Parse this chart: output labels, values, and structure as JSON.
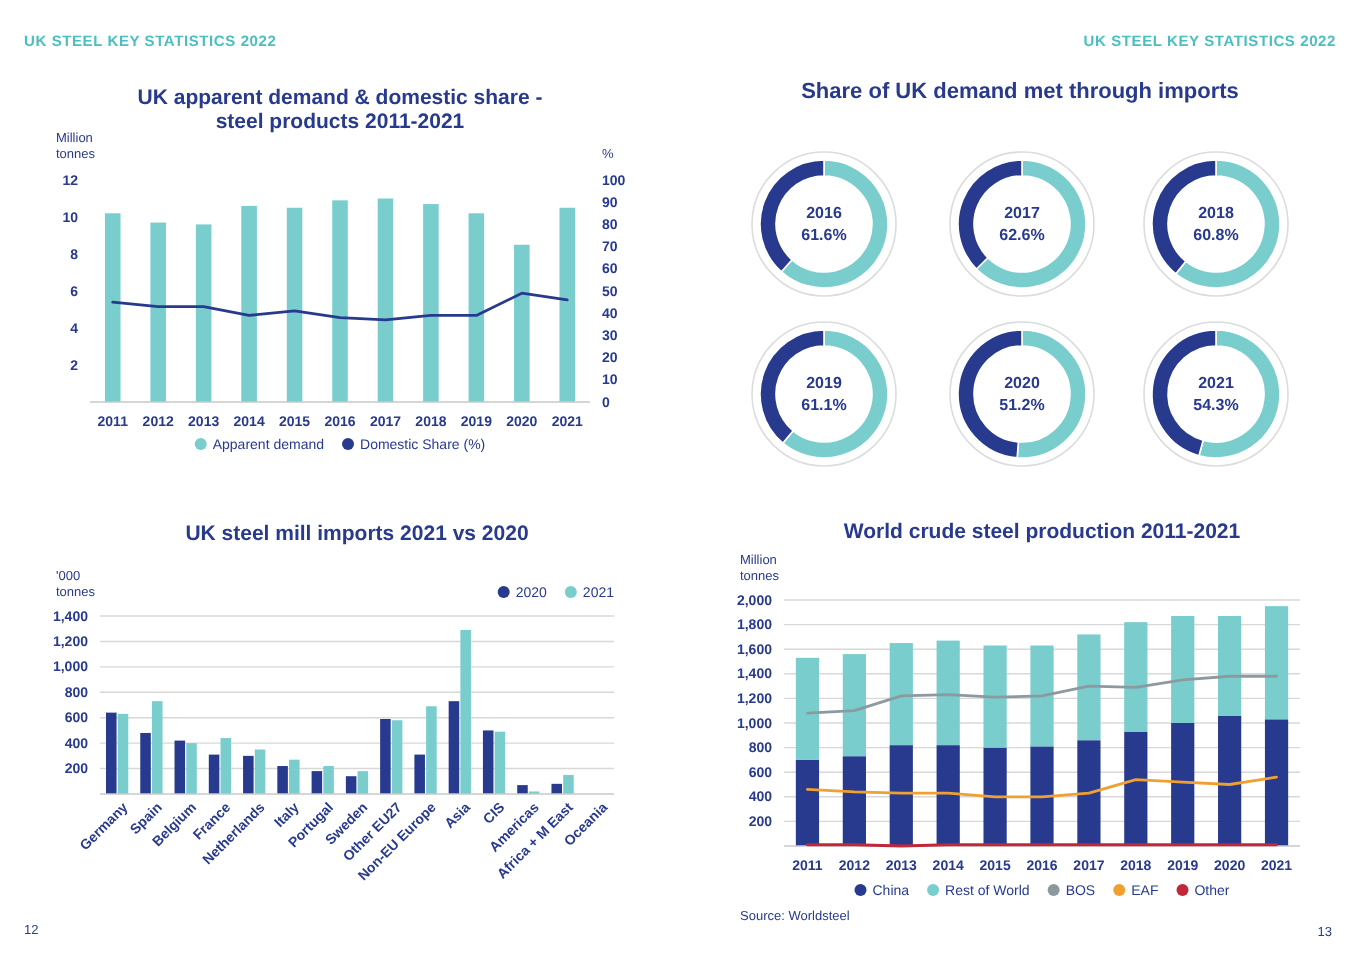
{
  "chart_data": [
    {
      "type": "bar",
      "title": "UK apparent demand & domestic share - steel products 2011-2021",
      "ylabel": "Million tonnes",
      "y2label": "%",
      "annotations": [
        "UK STEEL KEY STATISTICS 2022"
      ],
      "categories": [
        "2011",
        "2012",
        "2013",
        "2014",
        "2015",
        "2016",
        "2017",
        "2018",
        "2019",
        "2020",
        "2021"
      ],
      "series": [
        {
          "name": "Apparent demand",
          "type": "bar",
          "color": "#79cdcd",
          "values": [
            10.2,
            9.7,
            9.6,
            10.6,
            10.5,
            10.9,
            11.0,
            10.7,
            10.2,
            8.5,
            10.5
          ]
        },
        {
          "name": "Domestic Share (%)",
          "type": "line",
          "axis": "y2",
          "color": "#283a8e",
          "values": [
            45,
            43,
            43,
            39,
            41,
            38,
            37,
            39,
            39,
            49,
            46
          ]
        }
      ],
      "ylim": [
        0,
        12
      ],
      "yticks": [
        2,
        4,
        6,
        8,
        10,
        12
      ],
      "y2lim": [
        0,
        100
      ],
      "y2ticks": [
        0,
        10,
        20,
        30,
        40,
        50,
        60,
        70,
        80,
        90,
        100
      ],
      "legend": "bottom"
    },
    {
      "type": "donut",
      "title": "2016",
      "annotations": [
        "UK STEEL KEY STATISTICS 2022",
        "Share of UK demand met through imports"
      ],
      "categories": [
        null,
        null
      ],
      "values": [
        61.6,
        38.4
      ],
      "colors": [
        "#79cdcd",
        "#283a8e"
      ],
      "value_labels": [
        "61.6%",
        null
      ]
    },
    {
      "type": "donut",
      "title": "2017",
      "categories": [
        null,
        null
      ],
      "values": [
        62.6,
        37.4
      ],
      "colors": [
        "#79cdcd",
        "#283a8e"
      ],
      "value_labels": [
        "62.6%",
        null
      ]
    },
    {
      "type": "donut",
      "title": "2018",
      "categories": [
        null,
        null
      ],
      "values": [
        60.8,
        39.2
      ],
      "colors": [
        "#79cdcd",
        "#283a8e"
      ],
      "value_labels": [
        "60.8%",
        null
      ]
    },
    {
      "type": "donut",
      "title": "2019",
      "categories": [
        null,
        null
      ],
      "values": [
        61.1,
        38.9
      ],
      "colors": [
        "#79cdcd",
        "#283a8e"
      ],
      "value_labels": [
        "61.1%",
        null
      ]
    },
    {
      "type": "donut",
      "title": "2020",
      "categories": [
        null,
        null
      ],
      "values": [
        51.2,
        48.8
      ],
      "colors": [
        "#79cdcd",
        "#283a8e"
      ],
      "value_labels": [
        "51.2%",
        null
      ]
    },
    {
      "type": "donut",
      "title": "2021",
      "categories": [
        null,
        null
      ],
      "values": [
        54.3,
        45.7
      ],
      "colors": [
        "#79cdcd",
        "#283a8e"
      ],
      "value_labels": [
        "54.3%",
        null
      ]
    },
    {
      "type": "bar",
      "title": "UK steel mill imports 2021 vs 2020",
      "ylabel": "'000 tonnes",
      "annotations": [
        "12"
      ],
      "categories": [
        "Germany",
        "Spain",
        "Belgium",
        "France",
        "Netherlands",
        "Italy",
        "Portugal",
        "Sweden",
        "Other EU27",
        "Non-EU Europe",
        "Asia",
        "CIS",
        "Americas",
        "Africa + M East",
        "Oceania"
      ],
      "series": [
        {
          "name": "2020",
          "color": "#283a8e",
          "values": [
            640,
            480,
            420,
            310,
            300,
            220,
            180,
            140,
            590,
            310,
            730,
            500,
            70,
            80,
            null
          ]
        },
        {
          "name": "2021",
          "color": "#79cdcd",
          "values": [
            630,
            730,
            400,
            440,
            350,
            270,
            220,
            180,
            580,
            690,
            1290,
            490,
            20,
            150,
            null
          ]
        }
      ],
      "ylim": [
        0,
        1400
      ],
      "yticks": [
        {
          "value": 200,
          "label": "200"
        },
        {
          "value": 400,
          "label": "400"
        },
        {
          "value": 600,
          "label": "600"
        },
        {
          "value": 800,
          "label": "800"
        },
        {
          "value": 1000,
          "label": "1,000"
        },
        {
          "value": 1200,
          "label": "1,200"
        },
        {
          "value": 1400,
          "label": "1,400"
        }
      ],
      "grid": "y",
      "legend": "top right"
    },
    {
      "type": "bar",
      "title": "World crude steel production 2011-2021",
      "ylabel": "Million tonnes",
      "annotations": [
        "Source: Worldsteel",
        "13"
      ],
      "stacked": true,
      "categories": [
        "2011",
        "2012",
        "2013",
        "2014",
        "2015",
        "2016",
        "2017",
        "2018",
        "2019",
        "2020",
        "2021"
      ],
      "series": [
        {
          "name": "China",
          "type": "bar",
          "color": "#283a8e",
          "values": [
            700,
            730,
            820,
            820,
            800,
            810,
            860,
            930,
            1000,
            1060,
            1030
          ]
        },
        {
          "name": "Rest of World",
          "type": "bar",
          "color": "#79cdcd",
          "values": [
            830,
            830,
            830,
            850,
            830,
            820,
            860,
            890,
            870,
            810,
            920
          ]
        },
        {
          "name": "BOS",
          "type": "line",
          "color": "#8c9aa0",
          "values": [
            1080,
            1100,
            1220,
            1230,
            1210,
            1220,
            1300,
            1290,
            1350,
            1380,
            1380
          ]
        },
        {
          "name": "EAF",
          "type": "line",
          "color": "#f0a030",
          "values": [
            460,
            440,
            430,
            430,
            400,
            400,
            430,
            540,
            520,
            500,
            560
          ]
        },
        {
          "name": "Other",
          "type": "line",
          "color": "#c0283a",
          "values": [
            10,
            10,
            0,
            10,
            10,
            10,
            10,
            10,
            10,
            10,
            10
          ]
        }
      ],
      "ylim": [
        0,
        2000
      ],
      "yticks": [
        {
          "value": 200,
          "label": "200"
        },
        {
          "value": 400,
          "label": "400"
        },
        {
          "value": 600,
          "label": "600"
        },
        {
          "value": 800,
          "label": "800"
        },
        {
          "value": 1000,
          "label": "1,000"
        },
        {
          "value": 1200,
          "label": "1,200"
        },
        {
          "value": 1400,
          "label": "1,400"
        },
        {
          "value": 1600,
          "label": "1,600"
        },
        {
          "value": 1800,
          "label": "1,800"
        },
        {
          "value": 2000,
          "label": "2,000"
        }
      ],
      "grid": "y",
      "legend": "bottom"
    }
  ]
}
